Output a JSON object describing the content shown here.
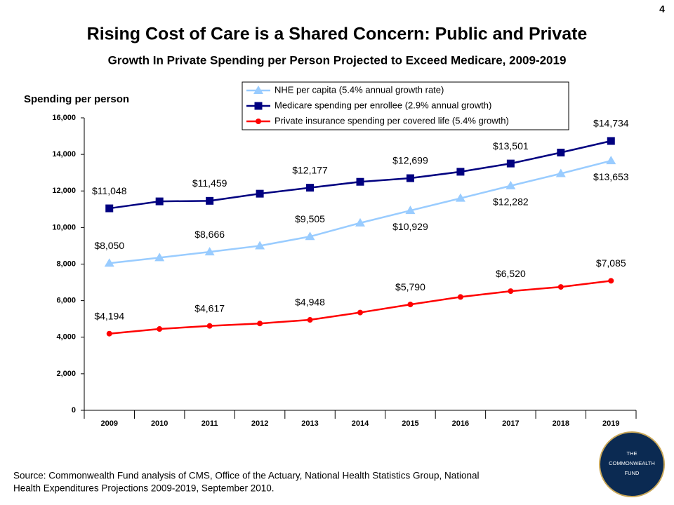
{
  "slide": {
    "page_number": "4",
    "source": [
      "Source: Commonwealth Fund analysis of CMS, Office of the Actuary, National Health Statistics Group, National",
      "Health Expenditures Projections 2009-2019, September 2010."
    ],
    "logo": [
      "THE",
      "COMMONWEALTH",
      "FUND"
    ]
  },
  "chart_data": {
    "type": "line",
    "title": "Rising Cost of Care is a Shared Concern: Public and Private",
    "subtitle": "Growth In Private Spending per Person Projected to Exceed  Medicare, 2009-2019",
    "y_label": "Spending per person",
    "categories": [
      "2009",
      "2010",
      "2011",
      "2012",
      "2013",
      "2014",
      "2015",
      "2016",
      "2017",
      "2018",
      "2019"
    ],
    "ylim": [
      0,
      16000
    ],
    "yticks": [
      0,
      {
        "value": 2000,
        "label": "2,000"
      },
      {
        "value": 4000,
        "label": "4,000"
      },
      {
        "value": 6000,
        "label": "6,000"
      },
      {
        "value": 8000,
        "label": "8,000"
      },
      {
        "value": 10000,
        "label": "10,000"
      },
      {
        "value": 12000,
        "label": "12,000"
      },
      {
        "value": 14000,
        "label": "14,000"
      },
      {
        "value": 16000,
        "label": "16,000"
      }
    ],
    "grid": false,
    "series": [
      {
        "name": "NHE per capita (5.4% annual growth rate)",
        "color": "#99ccff",
        "marker": "triangle",
        "values": [
          8050,
          8350,
          8666,
          9000,
          9505,
          10250,
          10929,
          11600,
          12282,
          12950,
          13653
        ],
        "value_labels": [
          "$8,050",
          null,
          "$8,666",
          null,
          "$9,505",
          null,
          "$10,929",
          null,
          "$12,282",
          null,
          "$13,653"
        ]
      },
      {
        "name": "Medicare spending per enrollee (2.9% annual growth)",
        "color": "#000080",
        "marker": "square",
        "values": [
          11048,
          11430,
          11459,
          11850,
          12177,
          12500,
          12699,
          13050,
          13501,
          14100,
          14734
        ],
        "value_labels": [
          "$11,048",
          null,
          "$11,459",
          null,
          "$12,177",
          null,
          "$12,699",
          null,
          "$13,501",
          null,
          "$14,734"
        ]
      },
      {
        "name": "Private insurance spending per covered life (5.4% growth)",
        "color": "#ff0000",
        "marker": "circle",
        "values": [
          4194,
          4450,
          4617,
          4750,
          4948,
          5350,
          5790,
          6200,
          6520,
          6750,
          7085
        ],
        "value_labels": [
          "$4,194",
          null,
          "$4,617",
          null,
          "$4,948",
          null,
          "$5,790",
          null,
          "$6,520",
          null,
          "$7,085"
        ]
      }
    ]
  }
}
